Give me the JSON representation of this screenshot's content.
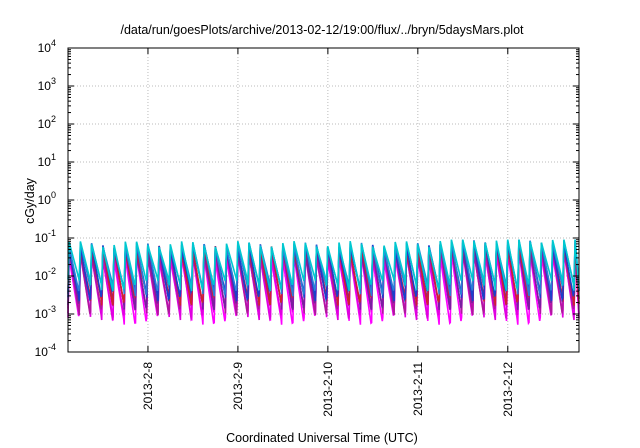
{
  "chart_data": {
    "type": "line",
    "title": "/data/run/goesPlots/archive/2013-02-12/19:00/flux/../bryn/5daysMars.plot",
    "xlabel": "Coordinated Universal Time (UTC)",
    "ylabel": "cGy/day",
    "y_scale": "log",
    "ylim": [
      0.0001,
      10000
    ],
    "y_ticks": [
      {
        "base": "10",
        "exp": "-4"
      },
      {
        "base": "10",
        "exp": "-3"
      },
      {
        "base": "10",
        "exp": "-2"
      },
      {
        "base": "10",
        "exp": "-1"
      },
      {
        "base": "10",
        "exp": "0"
      },
      {
        "base": "10",
        "exp": "1"
      },
      {
        "base": "10",
        "exp": "2"
      },
      {
        "base": "10",
        "exp": "3"
      },
      {
        "base": "10",
        "exp": "4"
      }
    ],
    "xlim": [
      "2013-02-07T02:40",
      "2013-02-12T19:00"
    ],
    "x_ticks": [
      "2013-2-8",
      "2013-2-9",
      "2013-2-10",
      "2013-2-11",
      "2013-2-12"
    ],
    "grid": true,
    "legend": "none",
    "oscillation_period_hours": 3,
    "series_colors": [
      "#ff00ff",
      "#e000e0",
      "#b0179e",
      "#7a1fa0",
      "#d02030",
      "#1a3fcc",
      "#2a7fd8",
      "#00c8d0"
    ],
    "band_peak_range": [
      0.03,
      0.07
    ],
    "band_trough_range": [
      0.0008,
      0.006
    ]
  }
}
